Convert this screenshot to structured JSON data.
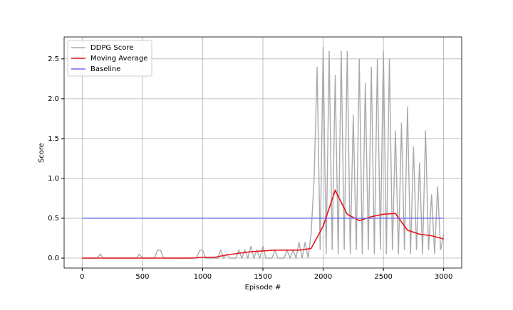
{
  "chart_data": {
    "type": "line",
    "xlabel": "Episode #",
    "ylabel": "Score",
    "xlim": [
      -150,
      3150
    ],
    "ylim": [
      -0.125,
      2.775
    ],
    "xticks": [
      0,
      500,
      1000,
      1500,
      2000,
      2500,
      3000
    ],
    "yticks": [
      {
        "value": 0,
        "label": "0.0"
      },
      0.5,
      {
        "value": 1,
        "label": "1.0"
      },
      1.5,
      {
        "value": 2,
        "label": "2.0"
      },
      2.5
    ],
    "grid": true,
    "legend": "upper left",
    "series": [
      {
        "name": "DDPG Score",
        "color": "#aaaaaa",
        "x": [
          0,
          25,
          50,
          75,
          100,
          125,
          150,
          175,
          200,
          225,
          250,
          275,
          300,
          325,
          350,
          375,
          400,
          425,
          450,
          475,
          500,
          525,
          550,
          575,
          600,
          625,
          650,
          675,
          700,
          725,
          750,
          775,
          800,
          825,
          850,
          875,
          900,
          925,
          950,
          975,
          1000,
          1025,
          1050,
          1075,
          1100,
          1125,
          1150,
          1175,
          1200,
          1225,
          1250,
          1275,
          1300,
          1325,
          1350,
          1375,
          1400,
          1425,
          1450,
          1475,
          1500,
          1525,
          1550,
          1575,
          1600,
          1625,
          1650,
          1675,
          1700,
          1725,
          1750,
          1775,
          1800,
          1825,
          1850,
          1875,
          1900,
          1925,
          1950,
          1975,
          2000,
          2025,
          2050,
          2075,
          2100,
          2125,
          2150,
          2175,
          2200,
          2225,
          2250,
          2275,
          2300,
          2325,
          2350,
          2375,
          2400,
          2425,
          2450,
          2475,
          2500,
          2525,
          2550,
          2575,
          2600,
          2625,
          2650,
          2675,
          2700,
          2725,
          2750,
          2775,
          2800,
          2825,
          2850,
          2875,
          2900,
          2925,
          2950,
          2975,
          3000
        ],
        "values": [
          0,
          0,
          0,
          0,
          0,
          0,
          0.05,
          0,
          0,
          0,
          0,
          0,
          0,
          0,
          0,
          0,
          0,
          0,
          0,
          0.05,
          0,
          0,
          0,
          0,
          0,
          0.1,
          0.1,
          0,
          0,
          0,
          0,
          0,
          0,
          0,
          0,
          0,
          0,
          0,
          0,
          0.1,
          0.1,
          0,
          0,
          0,
          0,
          0,
          0.1,
          0,
          0.05,
          0,
          0,
          0,
          0.1,
          0,
          0.1,
          0,
          0.15,
          0,
          0.1,
          0,
          0.15,
          0,
          0,
          0,
          0.1,
          0,
          0,
          0,
          0.1,
          0,
          0.1,
          0,
          0.2,
          0,
          0.2,
          0,
          0.3,
          1.0,
          2.4,
          0.1,
          2.65,
          0.05,
          2.6,
          0.1,
          2.3,
          0.05,
          2.6,
          0.1,
          2.6,
          0.05,
          1.8,
          0.1,
          2.5,
          0.05,
          2.2,
          0.1,
          2.4,
          0.05,
          2.5,
          0.1,
          2.6,
          0.05,
          2.5,
          0.1,
          1.6,
          0.05,
          1.7,
          0.1,
          1.9,
          0.05,
          1.4,
          0.1,
          1.2,
          0.05,
          1.6,
          0.1,
          0.8,
          0.05,
          0.9,
          0.1,
          0.3
        ]
      },
      {
        "name": "Moving Average",
        "color": "#e8141a",
        "x": [
          0,
          100,
          200,
          300,
          400,
          500,
          600,
          700,
          800,
          900,
          1000,
          1100,
          1200,
          1300,
          1400,
          1500,
          1600,
          1700,
          1800,
          1900,
          2000,
          2100,
          2200,
          2300,
          2400,
          2500,
          2600,
          2700,
          2800,
          2900,
          3000
        ],
        "values": [
          0,
          0,
          0,
          0,
          0,
          0,
          0,
          0,
          0,
          0,
          0.01,
          0.01,
          0.04,
          0.06,
          0.08,
          0.09,
          0.1,
          0.1,
          0.1,
          0.12,
          0.4,
          0.85,
          0.55,
          0.47,
          0.52,
          0.55,
          0.56,
          0.35,
          0.3,
          0.28,
          0.24
        ]
      },
      {
        "name": "Baseline",
        "color": "#6b6bf0",
        "x": [
          0,
          3000
        ],
        "values": [
          0.5,
          0.5
        ]
      }
    ]
  }
}
